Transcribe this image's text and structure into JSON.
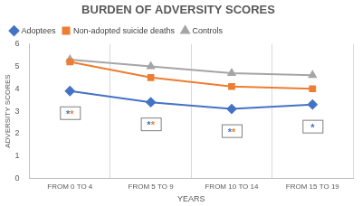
{
  "chart_data": {
    "type": "line",
    "title": "BURDEN OF ADVERSITY SCORES",
    "x_label": "YEARS",
    "y_label": "ADVERSITY SCORES",
    "categories": [
      "FROM 0 TO 4",
      "FROM 5 TO 9",
      "FROM 10 TO 14",
      "FROM 15 TO 19"
    ],
    "series": [
      {
        "name": "Adoptees",
        "color": "#4472c4",
        "marker": "diamond",
        "values": [
          3.9,
          3.4,
          3.1,
          3.3
        ]
      },
      {
        "name": "Non-adopted suicide deaths",
        "color": "#ed7d31",
        "marker": "square",
        "values": [
          5.2,
          4.5,
          4.1,
          4.0
        ]
      },
      {
        "name": "Controls",
        "color": "#a5a5a5",
        "marker": "triangle",
        "values": [
          5.3,
          5.0,
          4.7,
          4.6
        ]
      }
    ],
    "annotations": [
      "**",
      "**",
      "**",
      "*"
    ],
    "ylim": [
      0,
      6
    ],
    "yticks": [
      0,
      1,
      2,
      3,
      4,
      5,
      6
    ],
    "grid": true,
    "legend": "top"
  }
}
